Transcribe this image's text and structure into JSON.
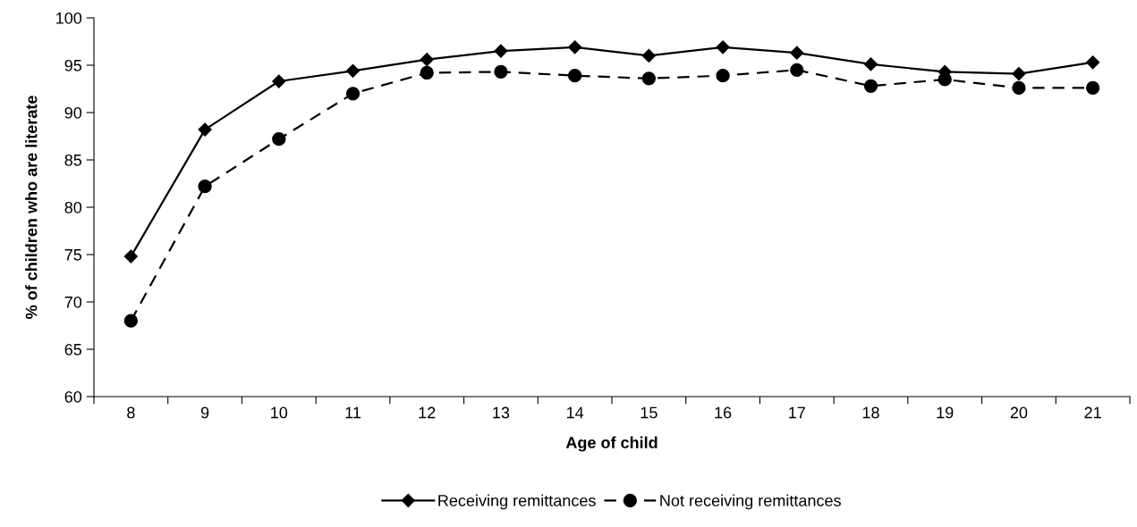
{
  "chart_data": {
    "type": "line",
    "xlabel": "Age of child",
    "ylabel": "% of children who are literate",
    "categories": [
      "8",
      "9",
      "10",
      "11",
      "12",
      "13",
      "14",
      "15",
      "16",
      "17",
      "18",
      "19",
      "20",
      "21"
    ],
    "series": [
      {
        "name": "Receiving remittances",
        "color": "#000000",
        "marker": "diamond",
        "line_style": "solid",
        "values": [
          74.8,
          88.2,
          93.3,
          94.4,
          95.6,
          96.5,
          96.9,
          96.0,
          96.9,
          96.3,
          95.1,
          94.3,
          94.1,
          95.3
        ]
      },
      {
        "name": "Not receiving remittances",
        "color": "#000000",
        "marker": "circle",
        "line_style": "dashed",
        "values": [
          68.0,
          82.2,
          87.2,
          92.0,
          94.2,
          94.3,
          93.9,
          93.6,
          93.9,
          94.5,
          92.8,
          93.5,
          92.6,
          92.6
        ]
      }
    ],
    "ylim": [
      60,
      100
    ],
    "yticks": [
      60,
      65,
      70,
      75,
      80,
      85,
      90,
      95,
      100
    ],
    "grid": false,
    "legend": "bottom"
  }
}
